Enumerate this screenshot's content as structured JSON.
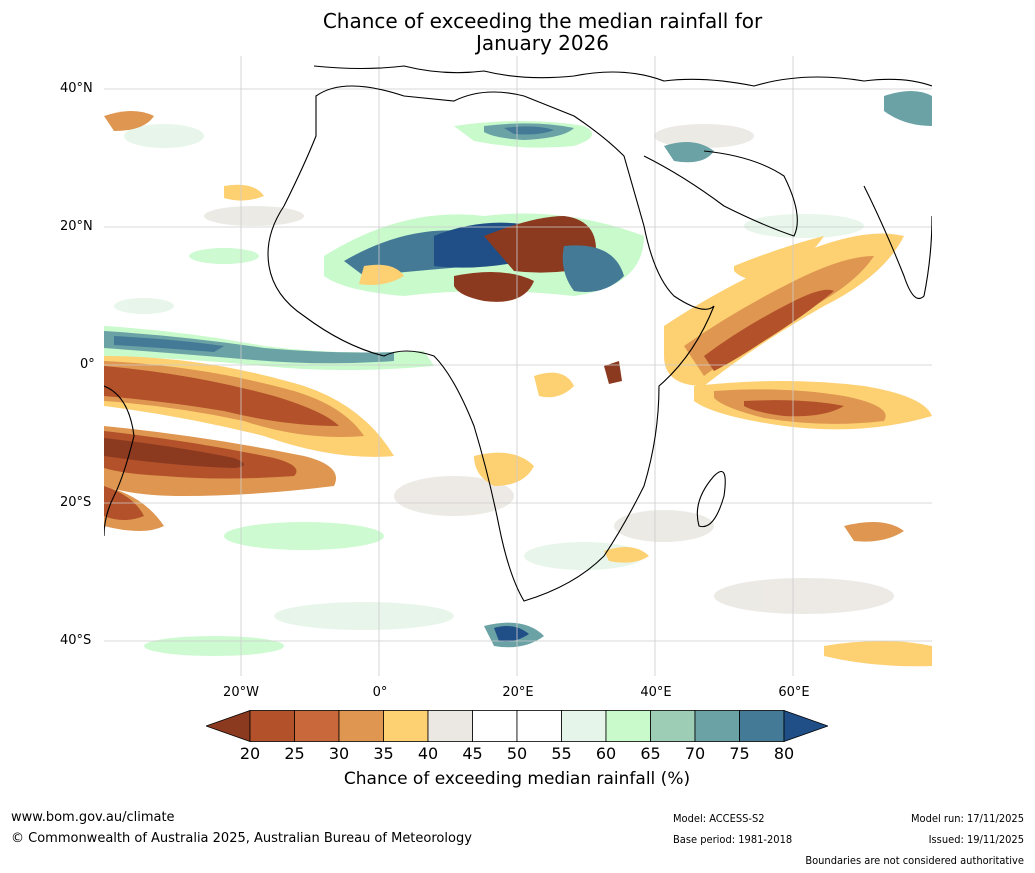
{
  "title_line1": "Chance of exceeding the median rainfall for",
  "title_line2": "January 2026",
  "lat_labels": [
    "40°N",
    "20°N",
    "0°",
    "20°S",
    "40°S"
  ],
  "lon_labels": [
    "20°W",
    "0°",
    "20°E",
    "40°E",
    "60°E"
  ],
  "colorbar": {
    "title": "Chance of exceeding median rainfall (%)",
    "ticks": [
      "20",
      "25",
      "30",
      "35",
      "40",
      "45",
      "50",
      "55",
      "60",
      "65",
      "70",
      "75",
      "80"
    ],
    "colors": [
      "#8b3a20",
      "#b2512a",
      "#c9683a",
      "#de9650",
      "#fdd072",
      "#ebe8e3",
      "#ffffff",
      "#ffffff",
      "#e6f5e9",
      "#c8facb",
      "#9ecdb6",
      "#6aa2a5",
      "#457a97",
      "#1f4f86"
    ]
  },
  "footer": {
    "website": "www.bom.gov.au/climate",
    "copyright": "© Commonwealth of Australia 2025, Australian Bureau of Meteorology",
    "model": "Model: ACCESS-S2",
    "base_period": "Base period: 1981-2018",
    "model_run": "Model run: 17/11/2025",
    "issued": "Issued: 19/11/2025",
    "boundaries": "Boundaries are not considered authoritative"
  }
}
